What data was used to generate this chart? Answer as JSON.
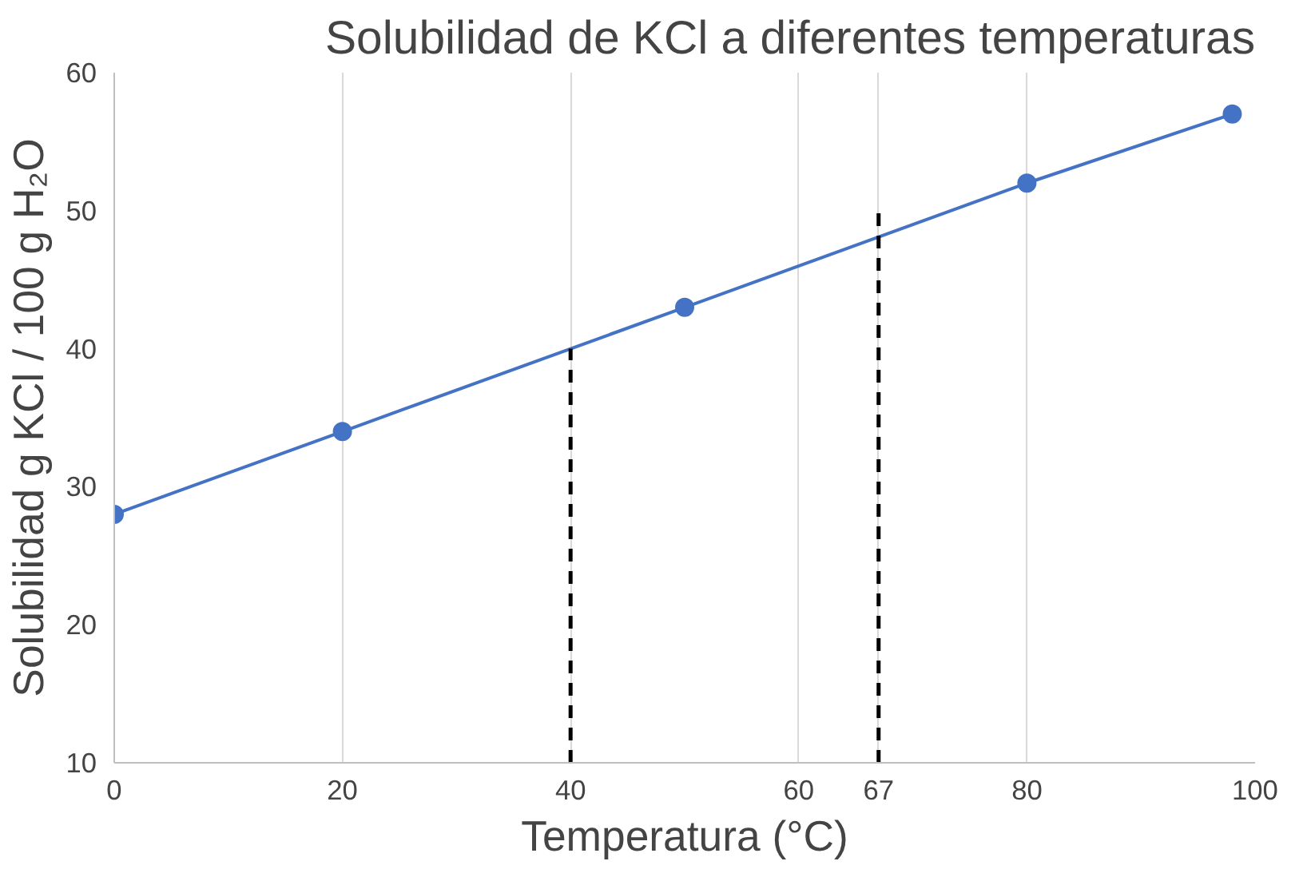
{
  "chart_data": {
    "type": "line",
    "title": "Solubilidad de KCl a diferentes temperaturas",
    "xlabel": "Temperatura (°C)",
    "ylabel": "Solubilidad g KCl / 100 g H₂O",
    "series": [
      {
        "x": [
          0,
          20,
          50,
          80,
          98
        ],
        "values": [
          28,
          34,
          43,
          52,
          57
        ],
        "color": "#4472c4",
        "marker": "circle"
      },
      {
        "x": [
          40,
          40
        ],
        "values": [
          10,
          40
        ],
        "color": "#000000",
        "marker": "none",
        "line_style": "dashed"
      },
      {
        "x": [
          67,
          67
        ],
        "values": [
          10,
          50
        ],
        "color": "#000000",
        "marker": "none",
        "line_style": "dashed"
      }
    ],
    "xlim": [
      0,
      100
    ],
    "ylim": [
      10,
      60
    ],
    "xticks": [
      0,
      20,
      40,
      60,
      67,
      80,
      100
    ],
    "yticks": [
      10,
      20,
      30,
      40,
      50,
      60
    ],
    "grid": "x"
  }
}
